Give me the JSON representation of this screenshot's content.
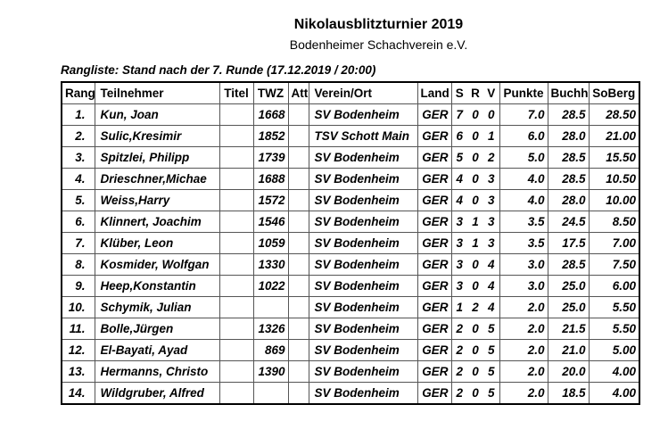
{
  "header": {
    "title": "Nikolausblitzturnier 2019",
    "subtitle": "Bodenheimer Schachverein e.V.",
    "caption": "Rangliste: Stand nach der 7. Runde (17.12.2019 / 20:00)"
  },
  "table": {
    "columns": [
      "Rang",
      "Teilnehmer",
      "Titel",
      "TWZ",
      "Att",
      "Verein/Ort",
      "Land",
      "S",
      "R",
      "V",
      "Punkte",
      "Buchh",
      "SoBerg"
    ],
    "rows": [
      [
        "1.",
        "Kun, Joan",
        "",
        "1668",
        "",
        "SV Bodenheim",
        "GER",
        "7",
        "0",
        "0",
        "7.0",
        "28.5",
        "28.50"
      ],
      [
        "2.",
        "Sulic,Kresimir",
        "",
        "1852",
        "",
        "TSV Schott Main",
        "GER",
        "6",
        "0",
        "1",
        "6.0",
        "28.0",
        "21.00"
      ],
      [
        "3.",
        "Spitzlei, Philipp",
        "",
        "1739",
        "",
        "SV Bodenheim",
        "GER",
        "5",
        "0",
        "2",
        "5.0",
        "28.5",
        "15.50"
      ],
      [
        "4.",
        "Drieschner,Michae",
        "",
        "1688",
        "",
        "SV Bodenheim",
        "GER",
        "4",
        "0",
        "3",
        "4.0",
        "28.5",
        "10.50"
      ],
      [
        "5.",
        "Weiss,Harry",
        "",
        "1572",
        "",
        "SV Bodenheim",
        "GER",
        "4",
        "0",
        "3",
        "4.0",
        "28.0",
        "10.00"
      ],
      [
        "6.",
        "Klinnert, Joachim",
        "",
        "1546",
        "",
        "SV Bodenheim",
        "GER",
        "3",
        "1",
        "3",
        "3.5",
        "24.5",
        "8.50"
      ],
      [
        "7.",
        "Klüber, Leon",
        "",
        "1059",
        "",
        "SV Bodenheim",
        "GER",
        "3",
        "1",
        "3",
        "3.5",
        "17.5",
        "7.00"
      ],
      [
        "8.",
        "Kosmider, Wolfgan",
        "",
        "1330",
        "",
        "SV Bodenheim",
        "GER",
        "3",
        "0",
        "4",
        "3.0",
        "28.5",
        "7.50"
      ],
      [
        "9.",
        "Heep,Konstantin",
        "",
        "1022",
        "",
        "SV Bodenheim",
        "GER",
        "3",
        "0",
        "4",
        "3.0",
        "25.0",
        "6.00"
      ],
      [
        "10.",
        "Schymik, Julian",
        "",
        "",
        "",
        "SV Bodenheim",
        "GER",
        "1",
        "2",
        "4",
        "2.0",
        "25.0",
        "5.50"
      ],
      [
        "11.",
        "Bolle,Jürgen",
        "",
        "1326",
        "",
        "SV Bodenheim",
        "GER",
        "2",
        "0",
        "5",
        "2.0",
        "21.5",
        "5.50"
      ],
      [
        "12.",
        "El-Bayati, Ayad",
        "",
        "869",
        "",
        "SV Bodenheim",
        "GER",
        "2",
        "0",
        "5",
        "2.0",
        "21.0",
        "5.00"
      ],
      [
        "13.",
        "Hermanns, Christo",
        "",
        "1390",
        "",
        "SV Bodenheim",
        "GER",
        "2",
        "0",
        "5",
        "2.0",
        "20.0",
        "4.00"
      ],
      [
        "14.",
        "Wildgruber, Alfred",
        "",
        "",
        "",
        "SV Bodenheim",
        "GER",
        "2",
        "0",
        "5",
        "2.0",
        "18.5",
        "4.00"
      ]
    ]
  }
}
